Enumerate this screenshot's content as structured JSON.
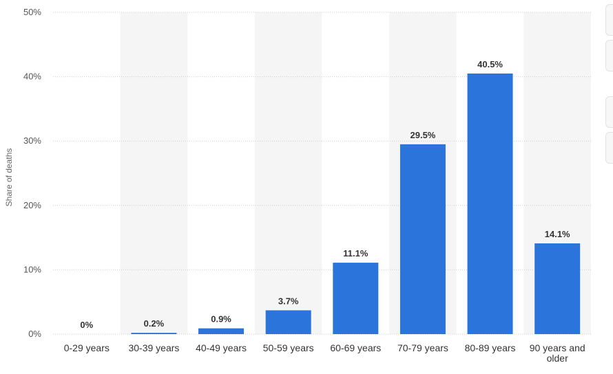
{
  "chart_data": {
    "type": "bar",
    "categories": [
      "0-29 years",
      "30-39 years",
      "40-49 years",
      "50-59 years",
      "60-69 years",
      "70-79 years",
      "80-89 years",
      "90 years and older"
    ],
    "category_lines": [
      [
        "0-29 years"
      ],
      [
        "30-39 years"
      ],
      [
        "40-49 years"
      ],
      [
        "50-59 years"
      ],
      [
        "60-69 years"
      ],
      [
        "70-79 years"
      ],
      [
        "80-89 years"
      ],
      [
        "90 years and",
        "older"
      ]
    ],
    "values": [
      0,
      0.2,
      0.9,
      3.7,
      11.1,
      29.5,
      40.5,
      14.1
    ],
    "value_labels": [
      "0%",
      "0.2%",
      "0.9%",
      "3.7%",
      "11.1%",
      "29.5%",
      "40.5%",
      "14.1%"
    ],
    "ylabel": "Share of deaths",
    "ylim": [
      0,
      50
    ],
    "yticks": [
      0,
      10,
      20,
      30,
      40,
      50
    ],
    "ytick_labels": [
      "0%",
      "10%",
      "20%",
      "30%",
      "40%",
      "50%"
    ],
    "grid": true,
    "colors": {
      "bar": "#2a74dc",
      "alt_band": "#f5f5f5",
      "grid": "#cccccc"
    }
  }
}
